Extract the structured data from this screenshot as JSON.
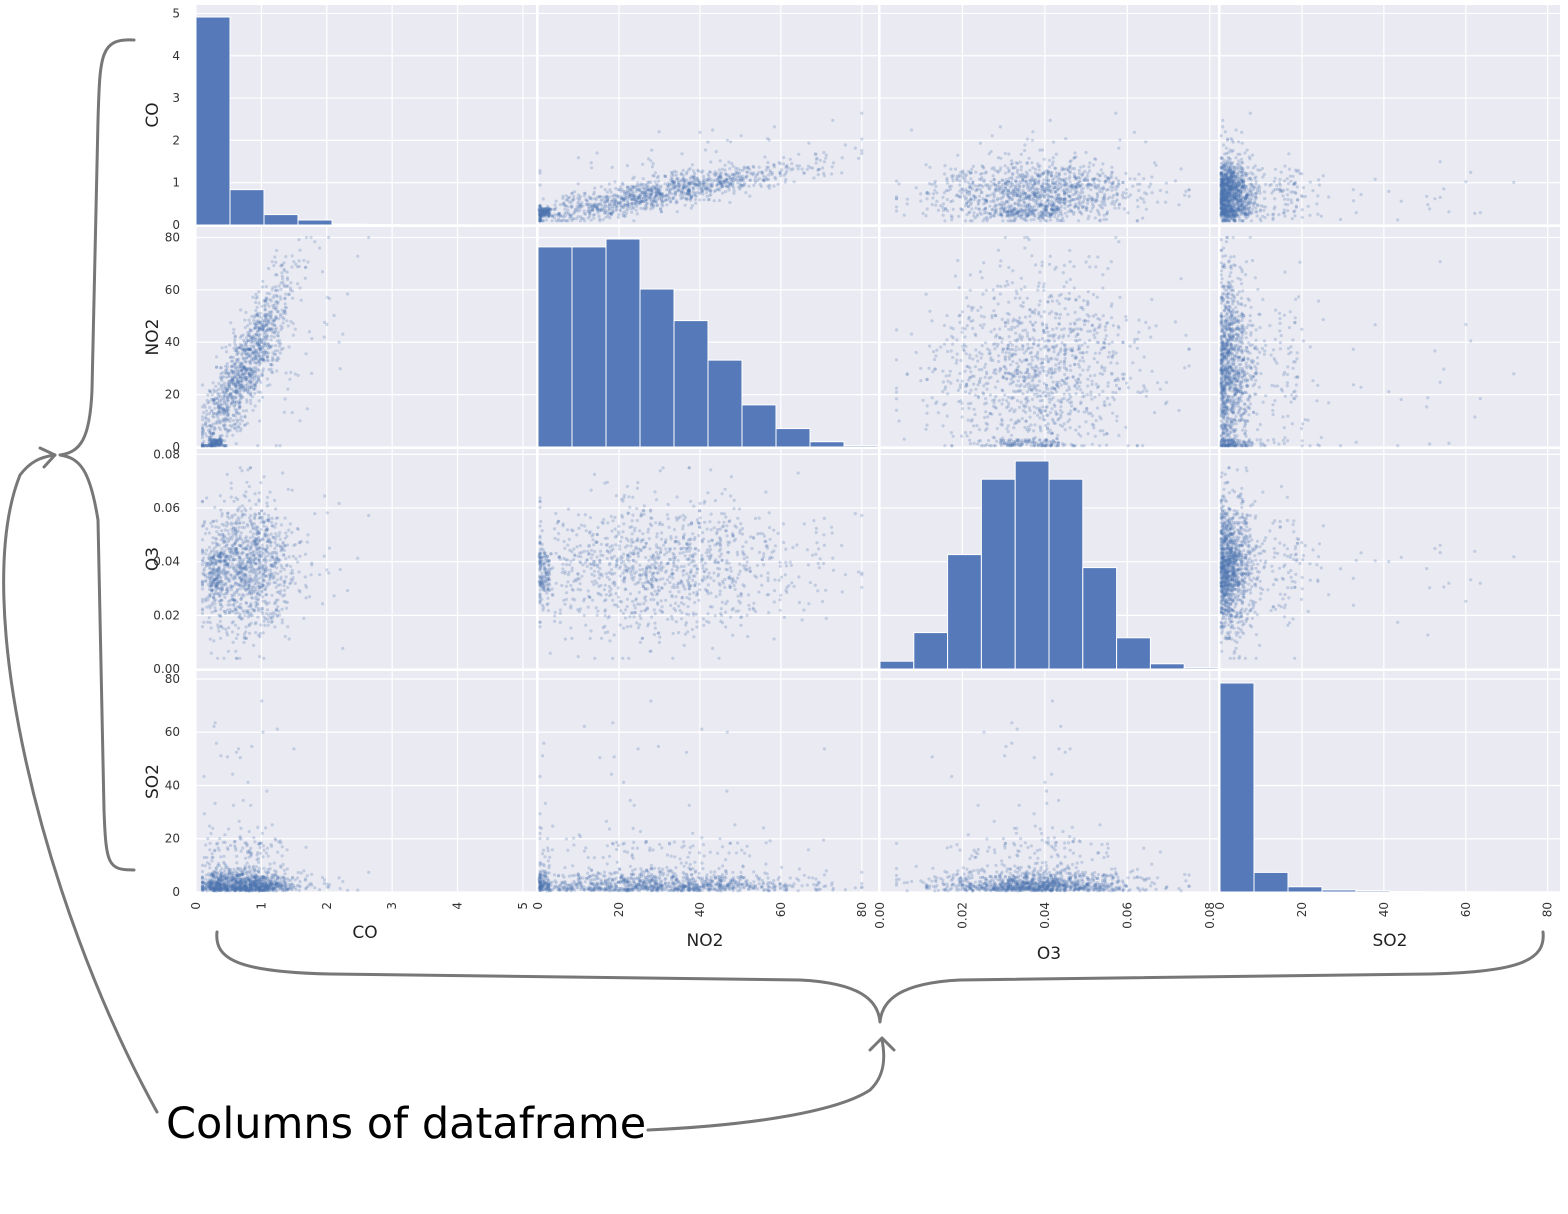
{
  "chart_data": {
    "type": "scatter",
    "variables": [
      "CO",
      "NO2",
      "O3",
      "SO2"
    ],
    "diagonal_type": "histogram",
    "off_diagonal_type": "scatter",
    "axis_labels": {
      "CO": "CO",
      "NO2": "NO2",
      "O3": "O3",
      "SO2": "SO2"
    },
    "ranges": {
      "CO": [
        0,
        5.2
      ],
      "NO2": [
        0,
        84
      ],
      "O3": [
        0,
        0.082
      ],
      "SO2": [
        0,
        83
      ]
    },
    "ticks": {
      "CO": [
        0,
        1,
        2,
        3,
        4,
        5
      ],
      "NO2": [
        0,
        20,
        40,
        60,
        80
      ],
      "O3": [
        0.0,
        0.02,
        0.04,
        0.06,
        0.08
      ],
      "SO2": [
        0,
        20,
        40,
        60,
        80
      ]
    },
    "tick_labels": {
      "CO": [
        "0",
        "1",
        "2",
        "3",
        "4",
        "5"
      ],
      "NO2": [
        "0",
        "20",
        "40",
        "60",
        "80"
      ],
      "O3": [
        "0.00",
        "0.02",
        "0.04",
        "0.06",
        "0.08"
      ],
      "SO2": [
        "0",
        "20",
        "40",
        "60",
        "80"
      ]
    },
    "histograms": {
      "CO": {
        "x_range": [
          0,
          5.2
        ],
        "bins": 10,
        "counts": [
          5.0,
          0.85,
          0.25,
          0.12,
          0.02,
          0.01,
          0.005,
          0.003,
          0.002,
          0.002
        ]
      },
      "NO2": {
        "x_range": [
          0,
          84
        ],
        "bins": 10,
        "counts": [
          76,
          76,
          79,
          60,
          48,
          33,
          16,
          7,
          2,
          0.5
        ]
      },
      "O3": {
        "x_range": [
          0,
          0.082
        ],
        "bins": 10,
        "counts": [
          0.003,
          0.014,
          0.044,
          0.073,
          0.08,
          0.073,
          0.039,
          0.012,
          0.002,
          0.0005
        ]
      },
      "SO2": {
        "x_range": [
          0,
          83
        ],
        "bins": 10,
        "counts": [
          80,
          7.5,
          2,
          0.8,
          0.5,
          0.2,
          0.1,
          0.1,
          0.05,
          0.05
        ]
      }
    },
    "points_per_panel": 1300,
    "marker_color": "#4c72b0",
    "grid": true,
    "legend": "none"
  },
  "annotation": {
    "text": "Columns of dataframe",
    "brace_color": "#777777"
  },
  "colors": {
    "panel_background": "#eaeaf2",
    "grid": "#ffffff",
    "bar": "#5579b9",
    "point": "#4c72b0"
  }
}
